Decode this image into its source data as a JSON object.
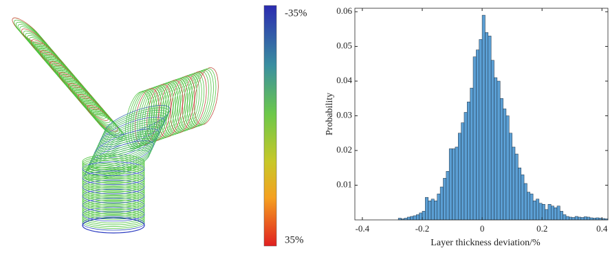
{
  "chart_data": {
    "type": "histogram",
    "x_label": "Layer thickness deviation/%",
    "y_label": "Probability",
    "color": "#5b9fd4",
    "xlim": [
      -0.425,
      0.42
    ],
    "ylim": [
      0,
      0.061
    ],
    "xticks": [
      -0.4,
      -0.2,
      0,
      0.2,
      0.4
    ],
    "yticks": [
      0.01,
      0.02,
      0.03,
      0.04,
      0.05,
      0.06
    ],
    "bins": [
      -0.28,
      -0.27,
      -0.26,
      -0.25,
      -0.24,
      -0.23,
      -0.22,
      -0.21,
      -0.2,
      -0.19,
      -0.18,
      -0.17,
      -0.16,
      -0.15,
      -0.14,
      -0.13,
      -0.12,
      -0.11,
      -0.1,
      -0.09,
      -0.08,
      -0.07,
      -0.06,
      -0.05,
      -0.04,
      -0.03,
      -0.02,
      -0.01,
      0,
      0.01,
      0.02,
      0.03,
      0.04,
      0.05,
      0.06,
      0.07,
      0.08,
      0.09,
      0.1,
      0.11,
      0.12,
      0.13,
      0.14,
      0.15,
      0.16,
      0.17,
      0.18,
      0.19,
      0.2,
      0.21,
      0.22,
      0.23,
      0.24,
      0.25,
      0.26,
      0.27,
      0.28,
      0.29,
      0.3,
      0.31,
      0.32,
      0.33,
      0.34,
      0.35,
      0.36,
      0.37,
      0.38,
      0.39,
      0.4,
      0.41,
      0.42
    ],
    "values": [
      0.0005,
      0.0003,
      0.0005,
      0.0008,
      0.001,
      0.0012,
      0.0015,
      0.002,
      0.0025,
      0.0065,
      0.0055,
      0.006,
      0.0055,
      0.0075,
      0.0095,
      0.012,
      0.014,
      0.0205,
      0.0205,
      0.021,
      0.025,
      0.028,
      0.031,
      0.034,
      0.038,
      0.047,
      0.049,
      0.052,
      0.059,
      0.054,
      0.053,
      0.046,
      0.041,
      0.04,
      0.035,
      0.032,
      0.03,
      0.025,
      0.021,
      0.019,
      0.015,
      0.013,
      0.0105,
      0.008,
      0.0075,
      0.0055,
      0.006,
      0.0048,
      0.0045,
      0.003,
      0.0045,
      0.004,
      0.0035,
      0.004,
      0.0025,
      0.0015,
      0.001,
      0.0008,
      0.0007,
      0.001,
      0.0008,
      0.0007,
      0.0009,
      0.0008,
      0.0006,
      0.0005,
      0.0006,
      0.0005,
      0.0004,
      0.0003
    ]
  },
  "colorbar": {
    "top_label": "-35%",
    "bottom_label": "35%"
  }
}
